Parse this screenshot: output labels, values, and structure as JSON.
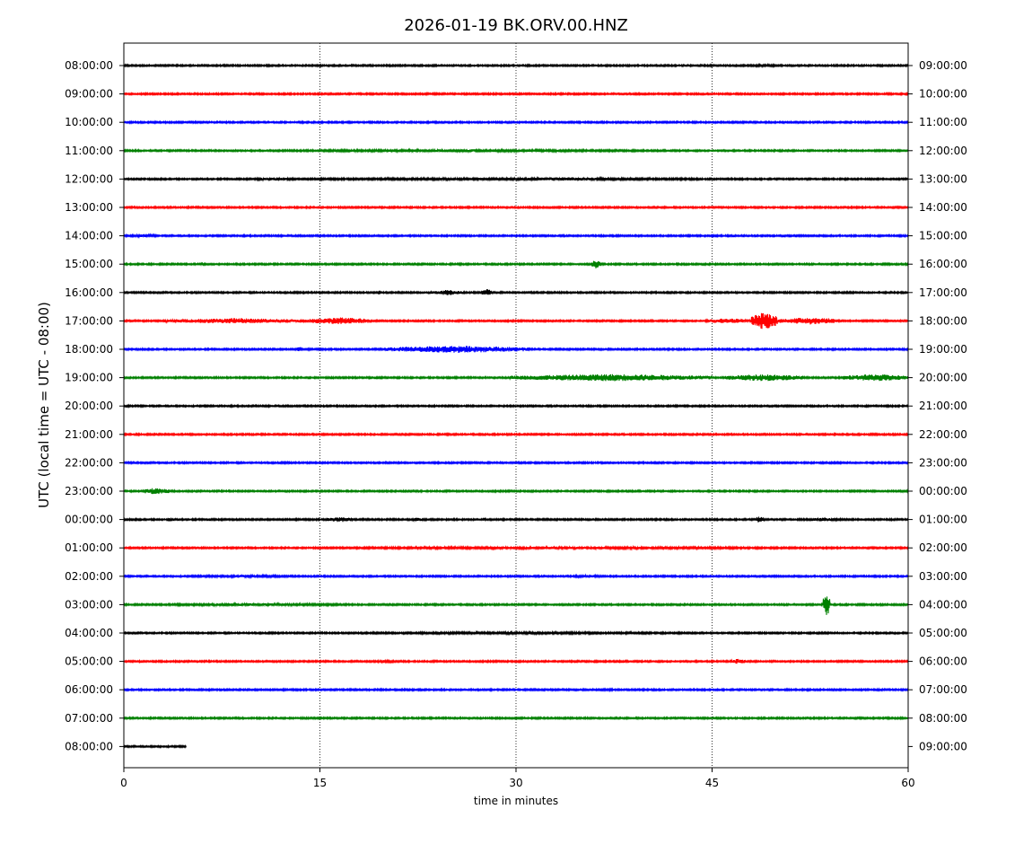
{
  "chart_data": {
    "type": "line",
    "title": "2026-01-19 BK.ORV.00.HNZ",
    "xlabel": "time in minutes",
    "ylabel": "UTC (local time = UTC - 08:00)",
    "xlim": [
      0,
      60
    ],
    "x_ticks": [
      "0",
      "15",
      "30",
      "45",
      "60"
    ],
    "x_tick_values": [
      0,
      15,
      30,
      45,
      60
    ],
    "grid": "vertical dotted lines at 15, 30, 45",
    "trace_colors": [
      "#000000",
      "#ff0000",
      "#0000ff",
      "#008000"
    ],
    "rows": [
      {
        "left": "08:00:00",
        "right": "09:00:00",
        "events": [
          {
            "start": 48,
            "end": 50,
            "amp": 1.5
          }
        ]
      },
      {
        "left": "09:00:00",
        "right": "10:00:00",
        "events": []
      },
      {
        "left": "10:00:00",
        "right": "11:00:00",
        "events": []
      },
      {
        "left": "11:00:00",
        "right": "12:00:00",
        "events": [
          {
            "start": 8,
            "end": 44,
            "amp": 1.5
          }
        ]
      },
      {
        "left": "12:00:00",
        "right": "13:00:00",
        "events": [
          {
            "start": 0,
            "end": 60,
            "amp": 1.3
          },
          {
            "start": 10,
            "end": 13,
            "amp": 2
          },
          {
            "start": 29,
            "end": 38,
            "amp": 2
          }
        ]
      },
      {
        "left": "13:00:00",
        "right": "14:00:00",
        "events": []
      },
      {
        "left": "14:00:00",
        "right": "15:00:00",
        "events": [
          {
            "start": 0,
            "end": 3,
            "amp": 1.5
          }
        ]
      },
      {
        "left": "15:00:00",
        "right": "16:00:00",
        "events": [
          {
            "start": 5.9,
            "end": 6.1,
            "amp": 2
          },
          {
            "start": 35.8,
            "end": 36.5,
            "amp": 5
          }
        ]
      },
      {
        "left": "16:00:00",
        "right": "17:00:00",
        "events": [
          {
            "start": 19.4,
            "end": 19.6,
            "amp": 3
          },
          {
            "start": 23.5,
            "end": 26,
            "amp": 3
          },
          {
            "start": 27.4,
            "end": 28.2,
            "amp": 4
          }
        ]
      },
      {
        "left": "17:00:00",
        "right": "18:00:00",
        "events": [
          {
            "start": 3,
            "end": 14,
            "amp": 3
          },
          {
            "start": 14,
            "end": 19,
            "amp": 4
          },
          {
            "start": 44.5,
            "end": 48,
            "amp": 3
          },
          {
            "start": 48,
            "end": 50,
            "amp": 10
          },
          {
            "start": 50,
            "end": 55,
            "amp": 4
          }
        ]
      },
      {
        "left": "18:00:00",
        "right": "19:00:00",
        "events": [
          {
            "start": 13.2,
            "end": 13.6,
            "amp": 3
          },
          {
            "start": 20,
            "end": 31,
            "amp": 4
          }
        ]
      },
      {
        "left": "19:00:00",
        "right": "20:00:00",
        "events": [
          {
            "start": 29.5,
            "end": 45,
            "amp": 4
          },
          {
            "start": 46,
            "end": 52,
            "amp": 4
          },
          {
            "start": 55,
            "end": 60,
            "amp": 4
          }
        ]
      },
      {
        "left": "20:00:00",
        "right": "21:00:00",
        "events": []
      },
      {
        "left": "21:00:00",
        "right": "22:00:00",
        "events": []
      },
      {
        "left": "22:00:00",
        "right": "23:00:00",
        "events": [
          {
            "start": 12.5,
            "end": 12.8,
            "amp": 2
          }
        ]
      },
      {
        "left": "23:00:00",
        "right": "00:00:00",
        "events": [
          {
            "start": 1.5,
            "end": 3.5,
            "amp": 4
          },
          {
            "start": 59.5,
            "end": 60,
            "amp": 2
          }
        ]
      },
      {
        "left": "00:00:00",
        "right": "01:00:00",
        "events": [
          {
            "start": 3.4,
            "end": 3.6,
            "amp": 3
          },
          {
            "start": 15.5,
            "end": 17.5,
            "amp": 3
          },
          {
            "start": 22,
            "end": 23,
            "amp": 2
          },
          {
            "start": 27.5,
            "end": 27.7,
            "amp": 2
          },
          {
            "start": 48.3,
            "end": 49,
            "amp": 4
          },
          {
            "start": 52,
            "end": 55,
            "amp": 2
          }
        ]
      },
      {
        "left": "01:00:00",
        "right": "02:00:00",
        "events": [
          {
            "start": 11,
            "end": 57,
            "amp": 1.5
          }
        ]
      },
      {
        "left": "02:00:00",
        "right": "03:00:00",
        "events": [
          {
            "start": 4,
            "end": 14,
            "amp": 1.5
          },
          {
            "start": 34,
            "end": 37,
            "amp": 1.5
          }
        ]
      },
      {
        "left": "03:00:00",
        "right": "04:00:00",
        "events": [
          {
            "start": 0,
            "end": 20,
            "amp": 1.5
          },
          {
            "start": 53.5,
            "end": 54,
            "amp": 14
          }
        ]
      },
      {
        "left": "04:00:00",
        "right": "05:00:00",
        "events": [
          {
            "start": 0,
            "end": 60,
            "amp": 1.2
          }
        ]
      },
      {
        "left": "05:00:00",
        "right": "06:00:00",
        "events": [
          {
            "start": 19,
            "end": 21,
            "amp": 1.5
          },
          {
            "start": 46.5,
            "end": 47.5,
            "amp": 3
          }
        ]
      },
      {
        "left": "06:00:00",
        "right": "07:00:00",
        "events": [
          {
            "start": 36,
            "end": 38,
            "amp": 1.2
          }
        ]
      },
      {
        "left": "07:00:00",
        "right": "08:00:00",
        "events": []
      },
      {
        "left": "08:00:00",
        "right": "09:00:00",
        "end_minute": 4.8,
        "events": []
      }
    ]
  }
}
